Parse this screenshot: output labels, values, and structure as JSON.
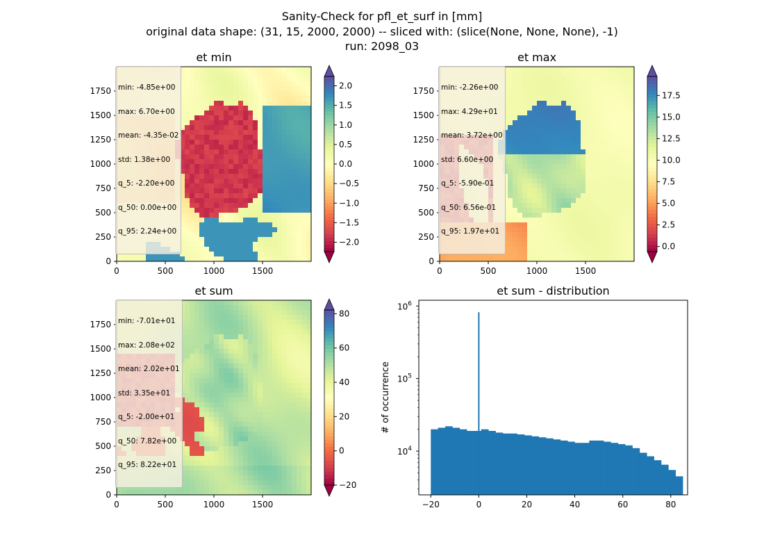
{
  "figure": {
    "title_lines": [
      "Sanity-Check for pfl_et_surf in [mm]",
      "original data shape: (31, 15, 2000, 2000) -- sliced with: (slice(None, None, None), -1)",
      "run: 2098_03"
    ]
  },
  "colors": {
    "colormap": [
      "#9e0142",
      "#d53e4f",
      "#f46d43",
      "#fdae61",
      "#fee08b",
      "#ffffbf",
      "#e6f598",
      "#abdda4",
      "#66c2a5",
      "#3288bd",
      "#5e4fa2"
    ],
    "histogram_bar": "#1f77b4"
  },
  "chart_data": [
    {
      "type": "heatmap",
      "title": "et min",
      "xlim": [
        0,
        2000
      ],
      "ylim": [
        0,
        2000
      ],
      "xticks": [
        0,
        500,
        1000,
        1500
      ],
      "yticks": [
        0,
        250,
        500,
        750,
        1000,
        1250,
        1500,
        1750
      ],
      "colormap": "Spectral",
      "colorbar": {
        "range": [
          -2.24,
          2.24
        ],
        "ticks": [
          "2.0",
          "1.5",
          "1.0",
          "0.5",
          "0.0",
          "−0.5",
          "−1.0",
          "−1.5",
          "−2.0"
        ],
        "extend": "both"
      },
      "stats": [
        "min: -4.85e+00",
        "max: 6.70e+00",
        "mean: -4.35e-02",
        "std: 1.38e+00",
        "q_5: -2.20e+00",
        "q_50: 0.00e+00",
        "q_95: 2.24e+00"
      ]
    },
    {
      "type": "heatmap",
      "title": "et max",
      "xlim": [
        0,
        2000
      ],
      "ylim": [
        0,
        2000
      ],
      "xticks": [
        0,
        500,
        1000,
        1500
      ],
      "yticks": [
        0,
        250,
        500,
        750,
        1000,
        1250,
        1500,
        1750
      ],
      "colormap": "Spectral",
      "colorbar": {
        "range": [
          -0.59,
          19.7
        ],
        "ticks": [
          "17.5",
          "15.0",
          "12.5",
          "10.0",
          "7.5",
          "5.0",
          "2.5",
          "0.0"
        ],
        "extend": "both"
      },
      "stats": [
        "min: -2.26e+00",
        "max: 4.29e+01",
        "mean: 3.72e+00",
        "std: 6.60e+00",
        "q_5: -5.90e-01",
        "q_50: 6.56e-01",
        "q_95: 1.97e+01"
      ]
    },
    {
      "type": "heatmap",
      "title": "et sum",
      "xlim": [
        0,
        2000
      ],
      "ylim": [
        0,
        2000
      ],
      "xticks": [
        0,
        500,
        1000,
        1500
      ],
      "yticks": [
        0,
        250,
        500,
        750,
        1000,
        1250,
        1500,
        1750
      ],
      "colormap": "Spectral",
      "colorbar": {
        "range": [
          -20.0,
          82.2
        ],
        "ticks": [
          "80",
          "60",
          "40",
          "20",
          "0",
          "−20"
        ],
        "extend": "both"
      },
      "stats": [
        "min: -7.01e+01",
        "max: 2.08e+02",
        "mean: 2.02e+01",
        "std: 3.35e+01",
        "q_5: -2.00e+01",
        "q_50: 7.82e+00",
        "q_95: 8.22e+01"
      ]
    },
    {
      "type": "bar",
      "title": "et sum - distribution",
      "ylabel": "# of occurrence",
      "yscale": "log",
      "xlim": [
        -25,
        87
      ],
      "ylim": [
        2500,
        1200000
      ],
      "xticks": [
        "−20",
        "0",
        "20",
        "40",
        "60",
        "80"
      ],
      "yticks": [
        "10^4",
        "10^5",
        "10^6"
      ],
      "spike": {
        "x": 0,
        "count": 820000
      },
      "bins": [
        {
          "x": -20,
          "count": 20000
        },
        {
          "x": -17,
          "count": 21000
        },
        {
          "x": -14,
          "count": 22000
        },
        {
          "x": -11,
          "count": 21000
        },
        {
          "x": -8,
          "count": 20000
        },
        {
          "x": -5,
          "count": 19000
        },
        {
          "x": -2,
          "count": 19000
        },
        {
          "x": 1,
          "count": 20000
        },
        {
          "x": 4,
          "count": 19000
        },
        {
          "x": 7,
          "count": 18000
        },
        {
          "x": 10,
          "count": 17500
        },
        {
          "x": 13,
          "count": 17500
        },
        {
          "x": 16,
          "count": 17000
        },
        {
          "x": 19,
          "count": 16500
        },
        {
          "x": 22,
          "count": 16000
        },
        {
          "x": 25,
          "count": 15500
        },
        {
          "x": 28,
          "count": 15000
        },
        {
          "x": 31,
          "count": 14500
        },
        {
          "x": 34,
          "count": 14000
        },
        {
          "x": 37,
          "count": 13500
        },
        {
          "x": 40,
          "count": 13000
        },
        {
          "x": 43,
          "count": 13000
        },
        {
          "x": 46,
          "count": 14000
        },
        {
          "x": 49,
          "count": 14000
        },
        {
          "x": 52,
          "count": 13500
        },
        {
          "x": 55,
          "count": 13000
        },
        {
          "x": 58,
          "count": 12500
        },
        {
          "x": 61,
          "count": 12000
        },
        {
          "x": 64,
          "count": 11000
        },
        {
          "x": 67,
          "count": 9500
        },
        {
          "x": 70,
          "count": 8500
        },
        {
          "x": 73,
          "count": 7500
        },
        {
          "x": 76,
          "count": 6500
        },
        {
          "x": 79,
          "count": 5500
        },
        {
          "x": 82,
          "count": 4500
        }
      ]
    }
  ]
}
